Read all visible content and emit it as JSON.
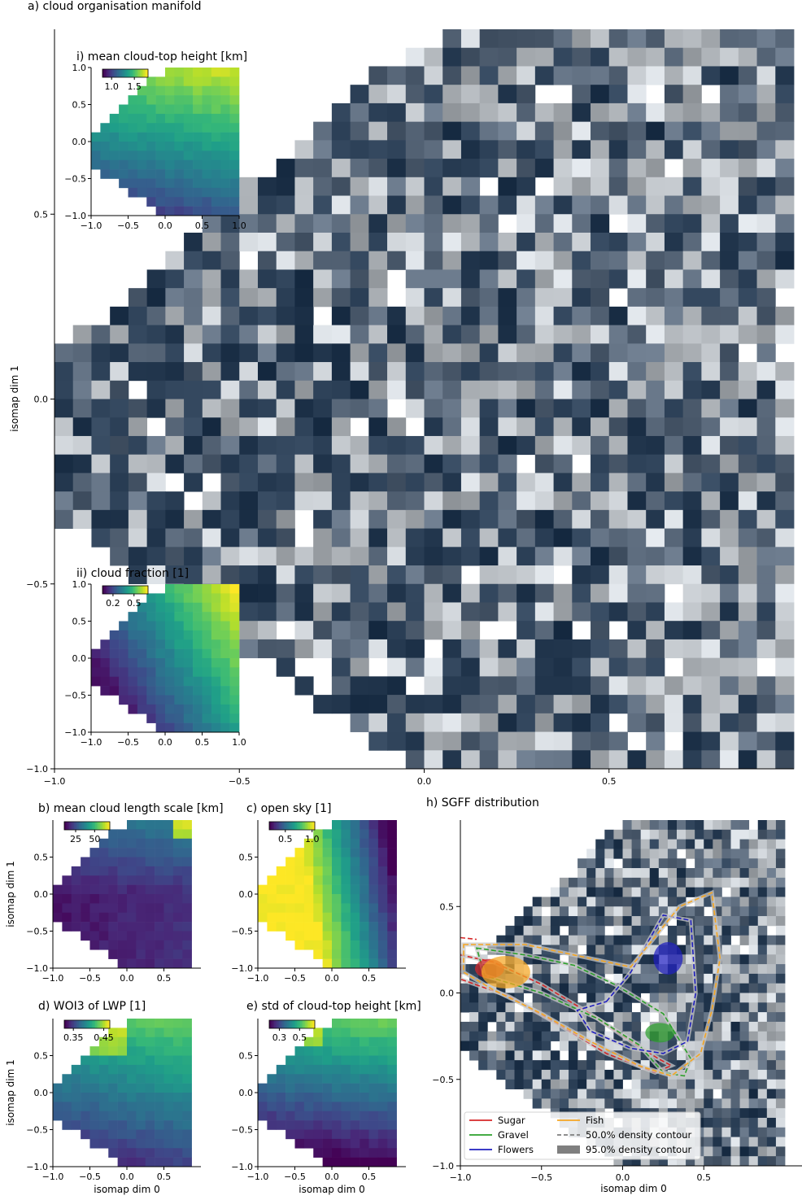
{
  "figure_titles": {
    "a": "a) cloud organisation manifold",
    "h": "h) SGFF distribution"
  },
  "axes_labels": {
    "x": "isomap dim 0",
    "y": "isomap dim 1"
  },
  "colors": {
    "sugar": "#d62728",
    "gravel": "#2ca02c",
    "flowers": "#1f1fbf",
    "fish": "#f5a623",
    "viridis_low": "#440154",
    "viridis_mid": "#21918c",
    "viridis_high": "#fde725"
  },
  "chart_data": [
    {
      "id": "a",
      "type": "heatmap",
      "title": "a) cloud organisation manifold",
      "ylabel": "isomap dim 1",
      "xlim": [
        -1.0,
        1.0
      ],
      "ylim": [
        -1.0,
        1.0
      ],
      "xticks": [
        -1.0,
        -0.5,
        0.0,
        0.5
      ],
      "yticks": [
        -1.0,
        -0.5,
        0.0,
        0.5
      ],
      "tick_labels_x": [
        "−1.0",
        "−0.5",
        "0.0",
        "0.5"
      ],
      "tick_labels_y": [
        "−1.0",
        "−0.5",
        "0.0",
        "0.5"
      ]
    },
    {
      "id": "ai",
      "type": "heatmap",
      "title": "i) mean cloud-top height [km]",
      "xlim": [
        -1.0,
        1.0
      ],
      "ylim": [
        -1.0,
        1.0
      ],
      "tick_labels_x": [
        "−1.0",
        "−0.5",
        "0.0",
        "0.5",
        "1.0"
      ],
      "tick_labels_y": [
        "−1.0",
        "−0.5",
        "0.0",
        "0.5",
        "1.0"
      ],
      "colorbar_ticks": [
        "1.0",
        "1.5"
      ],
      "range": [
        0.8,
        1.8
      ]
    },
    {
      "id": "aii",
      "type": "heatmap",
      "title": "ii) cloud fraction [1]",
      "xlim": [
        -1.0,
        1.0
      ],
      "ylim": [
        -1.0,
        1.0
      ],
      "tick_labels_x": [
        "−1.0",
        "−0.5",
        "0.0",
        "0.5",
        "1.0"
      ],
      "tick_labels_y": [
        "−1.0",
        "−0.5",
        "0.0",
        "0.5",
        "1.0"
      ],
      "colorbar_ticks": [
        "0.2",
        "0.5"
      ],
      "range": [
        0.05,
        0.7
      ]
    },
    {
      "id": "b",
      "type": "heatmap",
      "title": "b) mean cloud length scale [km]",
      "ylabel": "isomap dim 1",
      "tick_labels_x": [
        "−1.0",
        "−0.5",
        "0.0",
        "0.5"
      ],
      "tick_labels_y": [
        "−1.0",
        "−0.5",
        "0.0",
        "0.5"
      ],
      "colorbar_ticks": [
        "25",
        "50"
      ],
      "range": [
        10,
        70
      ]
    },
    {
      "id": "c",
      "type": "heatmap",
      "title": "c) open sky [1]",
      "tick_labels_x": [
        "−1.0",
        "−0.5",
        "0.0",
        "0.5"
      ],
      "tick_labels_y": [
        "−1.0",
        "−0.5",
        "0.0",
        "0.5"
      ],
      "colorbar_ticks": [
        "0.5",
        "1.0"
      ],
      "range": [
        0.2,
        1.05
      ]
    },
    {
      "id": "d",
      "type": "heatmap",
      "title": "d) WOI3 of LWP [1]",
      "ylabel": "isomap dim 1",
      "xlabel": "isomap dim 0",
      "tick_labels_x": [
        "−1.0",
        "−0.5",
        "0.0",
        "0.5"
      ],
      "tick_labels_y": [
        "−1.0",
        "−0.5",
        "0.0",
        "0.5"
      ],
      "colorbar_ticks": [
        "0.35",
        "0.45"
      ],
      "range": [
        0.32,
        0.47
      ]
    },
    {
      "id": "e",
      "type": "heatmap",
      "title": "e) std of cloud-top height [km]",
      "xlabel": "isomap dim 0",
      "tick_labels_x": [
        "−1.0",
        "−0.5",
        "0.0",
        "0.5"
      ],
      "tick_labels_y": [
        "−1.0",
        "−0.5",
        "0.0",
        "0.5"
      ],
      "colorbar_ticks": [
        "0.3",
        "0.5"
      ],
      "range": [
        0.2,
        0.65
      ]
    },
    {
      "id": "h",
      "type": "scatter",
      "title": "h) SGFF distribution",
      "xlabel": "isomap dim 0",
      "xlim": [
        -1.0,
        1.0
      ],
      "ylim": [
        -1.0,
        1.0
      ],
      "tick_labels_x": [
        "−1.0",
        "−0.5",
        "0.0",
        "0.5"
      ],
      "tick_labels_y": [
        "−1.0",
        "−0.5",
        "0.0",
        "0.5"
      ],
      "legend": [
        "Sugar",
        "Gravel",
        "Flowers",
        "Fish",
        "50.0% density contour",
        "95.0% density contour"
      ],
      "legend_placement": "lower-left",
      "series": [
        {
          "name": "Sugar",
          "peak": [
            -0.82,
            0.14
          ]
        },
        {
          "name": "Gravel",
          "peak": [
            0.23,
            -0.23
          ]
        },
        {
          "name": "Flowers",
          "peak": [
            0.28,
            0.2
          ]
        },
        {
          "name": "Fish",
          "peak": [
            -0.72,
            0.12
          ]
        }
      ]
    }
  ]
}
